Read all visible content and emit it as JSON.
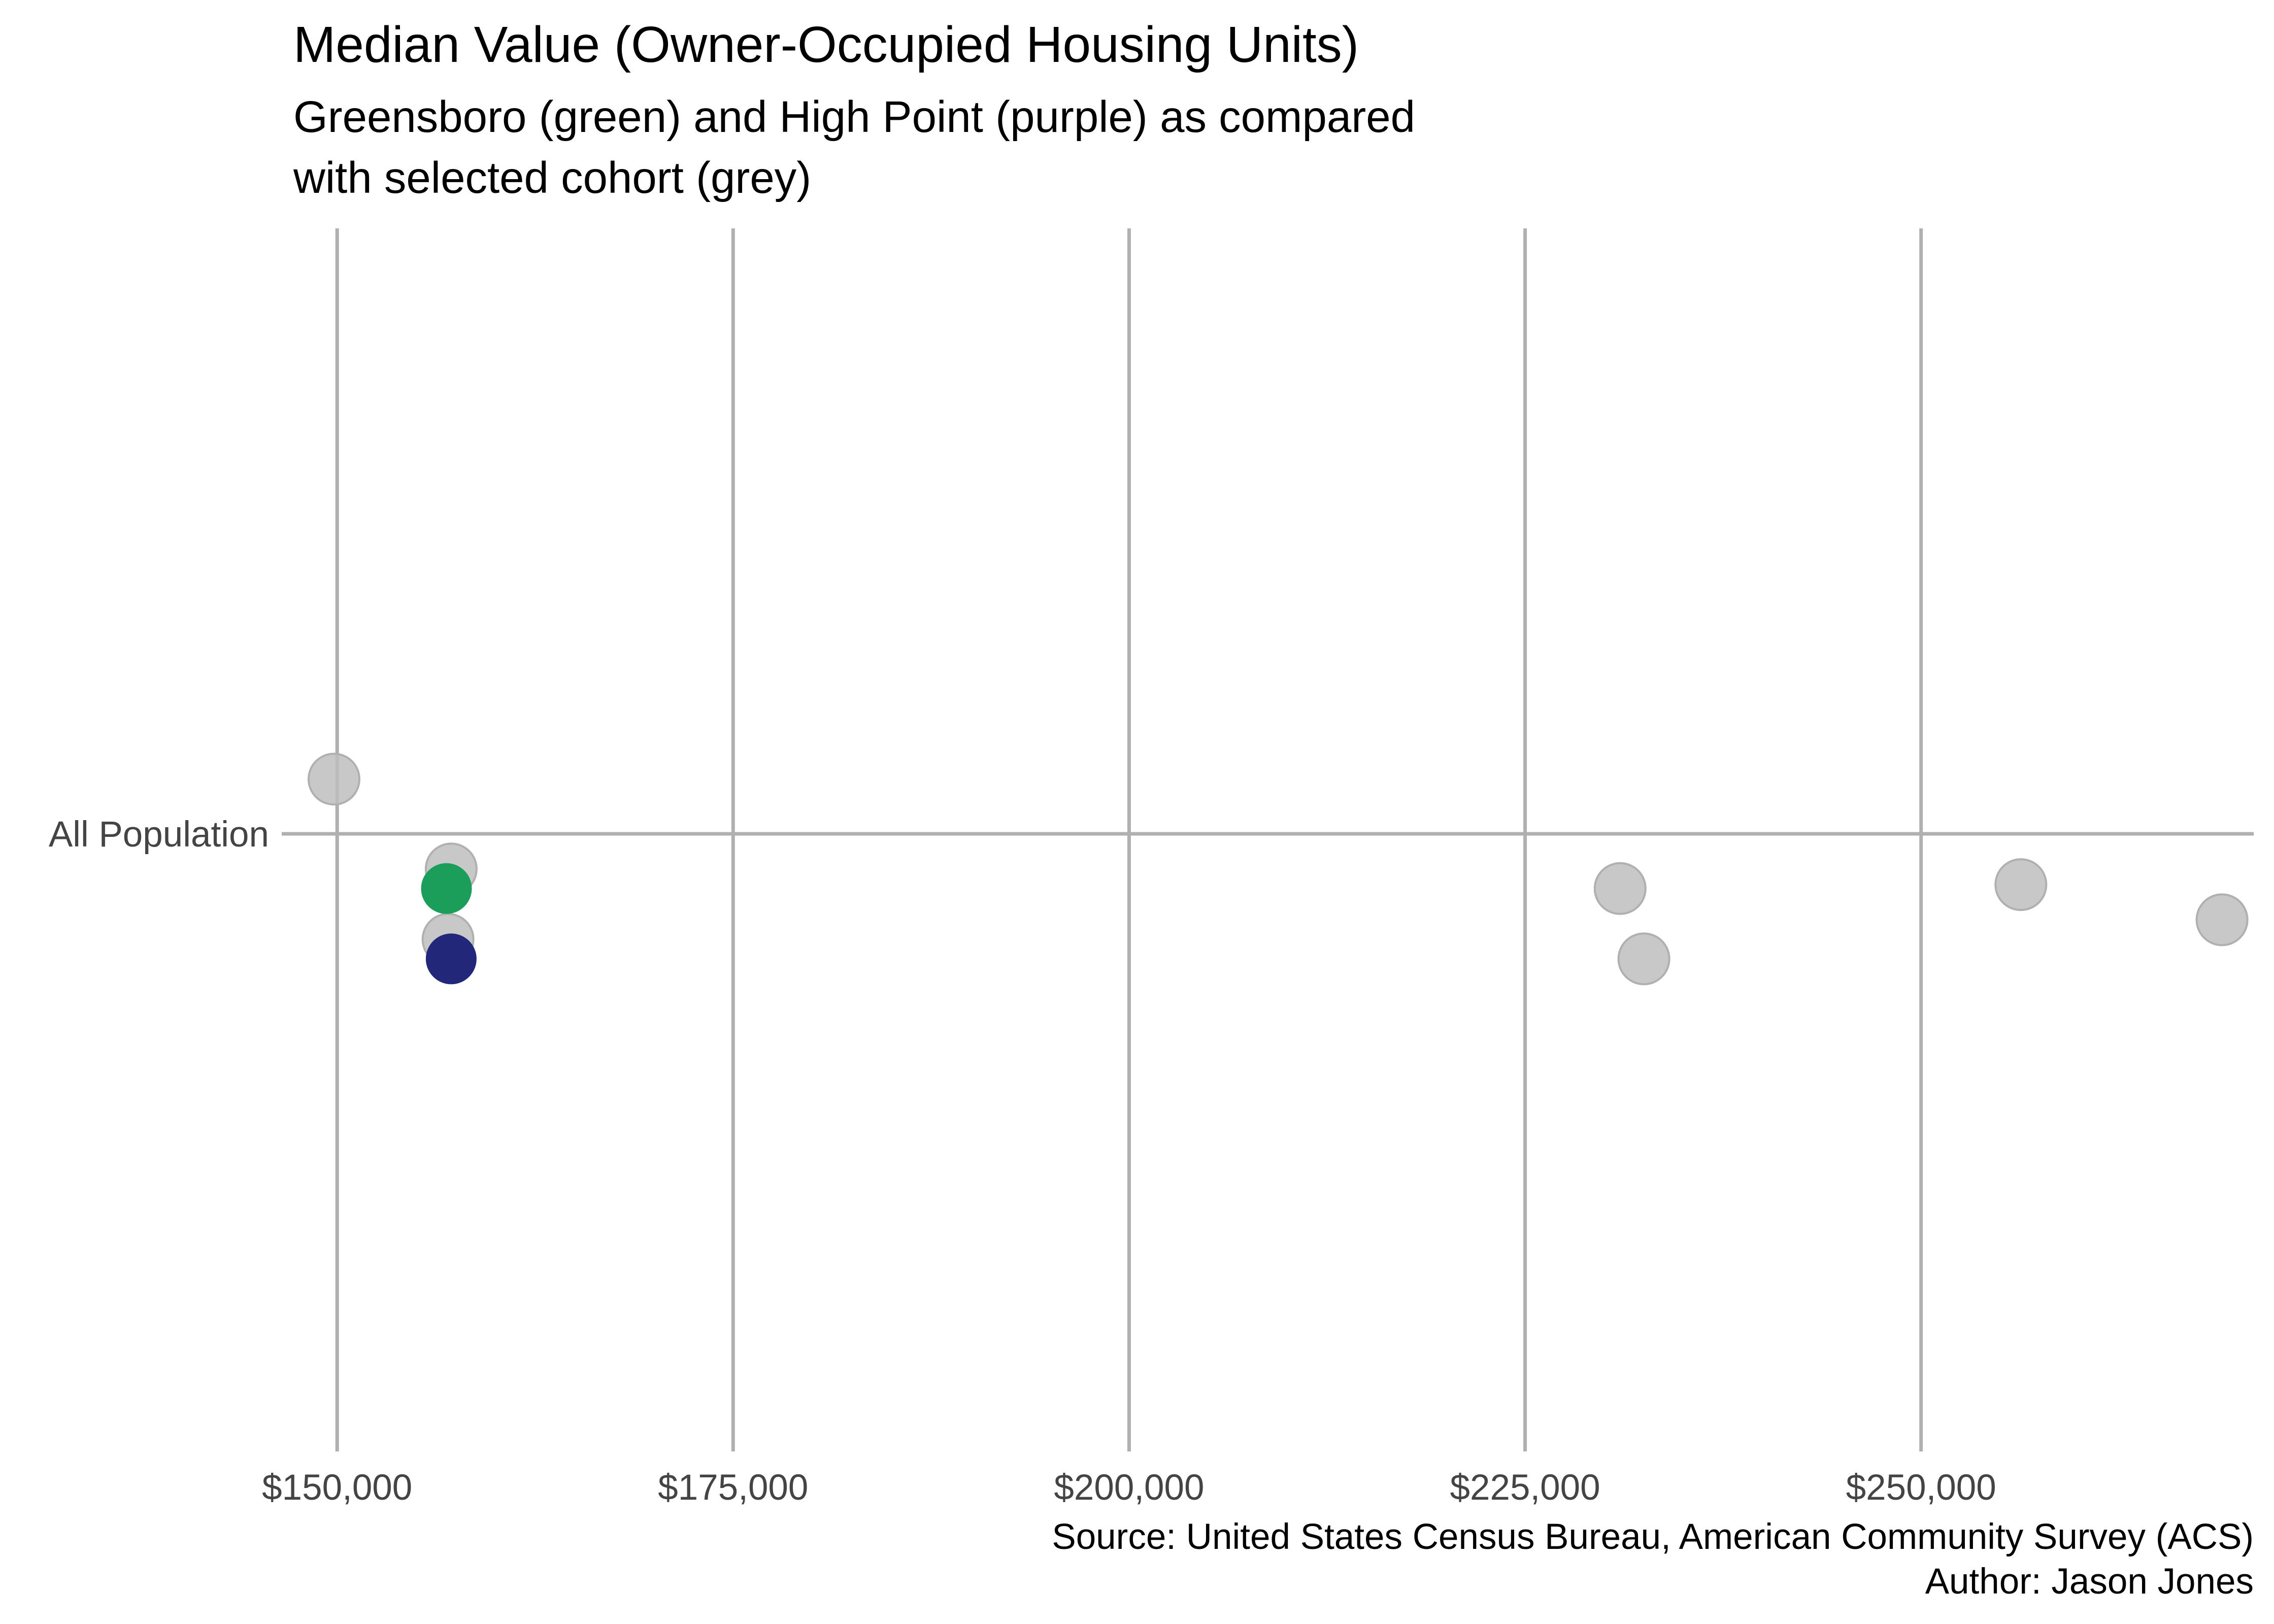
{
  "chart_data": {
    "type": "scatter",
    "title": "Median Value (Owner-Occupied Housing Units)",
    "subtitle": [
      "Greensboro (green) and High Point (purple) as compared",
      "with selected cohort (grey)"
    ],
    "caption": [
      "Source: United States Census Bureau, American Community Survey (ACS)",
      "Author: Jason Jones"
    ],
    "xlabel": "",
    "ylabel": "",
    "x_axis": {
      "range": [
        146500,
        271000
      ],
      "ticks": [
        150000,
        175000,
        200000,
        225000,
        250000
      ],
      "tick_labels": [
        "$150,000",
        "$175,000",
        "$200,000",
        "$225,000",
        "$250,000"
      ]
    },
    "y_axis": {
      "categories": [
        "All Population"
      ],
      "tick_labels": [
        "All Population"
      ]
    },
    "grid": true,
    "legend": "none",
    "colors": {
      "cohort": "#bebebe",
      "greensboro": "#1a9e5a",
      "high_point": "#22277a",
      "grid": "#b0b0b0"
    },
    "series": [
      {
        "points": [
          {
            "category": "All Population",
            "x": 149800,
            "jitter": 0.14,
            "color": "#bebebe"
          },
          {
            "category": "All Population",
            "x": 157200,
            "jitter": -0.09,
            "color": "#bebebe"
          },
          {
            "category": "All Population",
            "x": 157000,
            "jitter": -0.27,
            "color": "#bebebe"
          },
          {
            "category": "All Population",
            "x": 231000,
            "jitter": -0.14,
            "color": "#bebebe"
          },
          {
            "category": "All Population",
            "x": 232500,
            "jitter": -0.32,
            "color": "#bebebe"
          },
          {
            "category": "All Population",
            "x": 256300,
            "jitter": -0.13,
            "color": "#bebebe"
          },
          {
            "category": "All Population",
            "x": 269000,
            "jitter": -0.22,
            "color": "#bebebe"
          }
        ]
      },
      {
        "points": [
          {
            "category": "All Population",
            "x": 156900,
            "jitter": -0.14,
            "color": "#1a9e5a"
          }
        ]
      },
      {
        "points": [
          {
            "category": "All Population",
            "x": 157200,
            "jitter": -0.32,
            "color": "#22277a"
          }
        ]
      }
    ]
  }
}
